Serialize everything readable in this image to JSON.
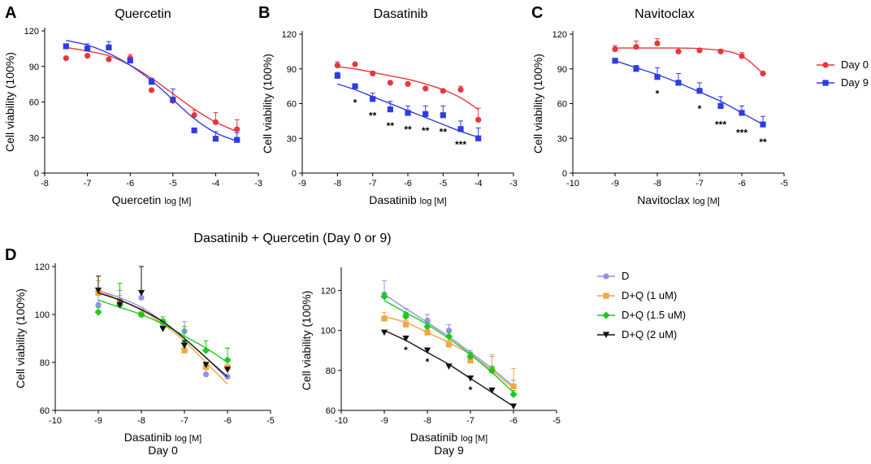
{
  "figure_title": "Dasatinib + Quercetin (Day 0 or 9)",
  "chart_data": [
    {
      "id": "A",
      "panel_label": "A",
      "type": "scatter",
      "title": "Quercetin",
      "xlabel": "Quercetin",
      "xlabel_suffix": "log [M]",
      "ylabel": "Cell viability (100%)",
      "xlim": [
        -8,
        -3
      ],
      "ylim": [
        0,
        120
      ],
      "xticks": [
        -8,
        -7,
        -6,
        -5,
        -4,
        -3
      ],
      "yticks": [
        0,
        30,
        60,
        90,
        120
      ],
      "series": [
        {
          "name": "Day 0",
          "color": "#e8373c",
          "marker": "circle",
          "x": [
            -7.5,
            -7,
            -6.5,
            -6,
            -5.5,
            -5,
            -4.5,
            -4,
            -3.5
          ],
          "y": [
            97,
            99,
            96,
            97,
            70,
            61,
            49,
            43,
            37
          ],
          "err": [
            0,
            0,
            0,
            3,
            0,
            0,
            4,
            8,
            8
          ],
          "fit": [
            [
              -7.5,
              106
            ],
            [
              -7,
              103
            ],
            [
              -6.5,
              99
            ],
            [
              -6,
              91
            ],
            [
              -5.5,
              80
            ],
            [
              -5,
              67
            ],
            [
              -4.5,
              54
            ],
            [
              -4,
              43
            ],
            [
              -3.5,
              35
            ]
          ]
        },
        {
          "name": "Day 9",
          "color": "#2f3de0",
          "marker": "square",
          "x": [
            -7.5,
            -7,
            -6.5,
            -6,
            -5.5,
            -5,
            -4.5,
            -4,
            -3.5
          ],
          "y": [
            107,
            105,
            106,
            95,
            77,
            62,
            36,
            29,
            28
          ],
          "err": [
            0,
            4,
            5,
            0,
            3,
            9,
            0,
            6,
            6
          ],
          "fit": [
            [
              -7.5,
              112
            ],
            [
              -7,
              108
            ],
            [
              -6.5,
              101
            ],
            [
              -6,
              91
            ],
            [
              -5.5,
              78
            ],
            [
              -5,
              62
            ],
            [
              -4.5,
              46
            ],
            [
              -4,
              34
            ],
            [
              -3.5,
              27
            ]
          ]
        }
      ],
      "annotations": []
    },
    {
      "id": "B",
      "panel_label": "B",
      "type": "scatter",
      "title": "Dasatinib",
      "xlabel": "Dasatinib",
      "xlabel_suffix": "log [M]",
      "ylabel": "Cell viability (100%)",
      "xlim": [
        -9,
        -3
      ],
      "ylim": [
        0,
        120
      ],
      "xticks": [
        -9,
        -8,
        -7,
        -6,
        -5,
        -4,
        -3
      ],
      "yticks": [
        0,
        30,
        60,
        90,
        120
      ],
      "series": [
        {
          "name": "Day 0",
          "color": "#e8373c",
          "marker": "circle",
          "x": [
            -8,
            -7.5,
            -7,
            -6.5,
            -6,
            -5.5,
            -5,
            -4.5,
            -4
          ],
          "y": [
            93,
            94,
            86,
            78,
            77,
            73,
            71,
            72,
            46
          ],
          "err": [
            3,
            0,
            2,
            0,
            0,
            0,
            0,
            3,
            10
          ],
          "fit": [
            [
              -8,
              92
            ],
            [
              -7.5,
              90
            ],
            [
              -7,
              87
            ],
            [
              -6.5,
              84
            ],
            [
              -6,
              81
            ],
            [
              -5.5,
              77
            ],
            [
              -5,
              72
            ],
            [
              -4.5,
              65
            ],
            [
              -4,
              55
            ]
          ]
        },
        {
          "name": "Day 9",
          "color": "#2f3de0",
          "marker": "square",
          "x": [
            -8,
            -7.5,
            -7,
            -6.5,
            -6,
            -5.5,
            -5,
            -4.5,
            -4
          ],
          "y": [
            84,
            75,
            64,
            55,
            52,
            51,
            50,
            38,
            30
          ],
          "err": [
            3,
            2,
            5,
            7,
            6,
            7,
            8,
            7,
            9
          ],
          "fit": [
            [
              -8,
              77
            ],
            [
              -7.5,
              72
            ],
            [
              -7,
              66
            ],
            [
              -6.5,
              60
            ],
            [
              -6,
              54
            ],
            [
              -5.5,
              48
            ],
            [
              -5,
              42
            ],
            [
              -4.5,
              36
            ],
            [
              -4,
              31
            ]
          ]
        }
      ],
      "annotations": [
        {
          "x": -7.5,
          "y": 62,
          "text": "*"
        },
        {
          "x": -7,
          "y": 51,
          "text": "**"
        },
        {
          "x": -6.5,
          "y": 42,
          "text": "**"
        },
        {
          "x": -6,
          "y": 39,
          "text": "**"
        },
        {
          "x": -5.5,
          "y": 38,
          "text": "**"
        },
        {
          "x": -5,
          "y": 37,
          "text": "**"
        },
        {
          "x": -4.5,
          "y": 26,
          "text": "***"
        }
      ]
    },
    {
      "id": "C",
      "panel_label": "C",
      "type": "scatter",
      "title": "Navitoclax",
      "xlabel": "Navitoclax",
      "xlabel_suffix": "log [M]",
      "ylabel": "Cell viability (100%)",
      "xlim": [
        -10,
        -5
      ],
      "ylim": [
        0,
        120
      ],
      "xticks": [
        -10,
        -9,
        -8,
        -7,
        -6,
        -5
      ],
      "yticks": [
        0,
        30,
        60,
        90,
        120
      ],
      "series": [
        {
          "name": "Day 0",
          "color": "#e8373c",
          "marker": "circle",
          "x": [
            -9,
            -8.5,
            -8,
            -7.5,
            -7,
            -6.5,
            -6,
            -5.5
          ],
          "y": [
            107,
            109,
            112,
            105,
            106,
            105,
            101,
            86
          ],
          "err": [
            3,
            5,
            4,
            0,
            0,
            2,
            3,
            0
          ],
          "fit": [
            [
              -9,
              108
            ],
            [
              -8.5,
              108
            ],
            [
              -8,
              108
            ],
            [
              -7.5,
              108
            ],
            [
              -7,
              107.5
            ],
            [
              -6.5,
              106
            ],
            [
              -6.2,
              104
            ],
            [
              -6,
              101
            ],
            [
              -5.8,
              96
            ],
            [
              -5.5,
              86
            ]
          ]
        },
        {
          "name": "Day 9",
          "color": "#2f3de0",
          "marker": "square",
          "x": [
            -9,
            -8.5,
            -8,
            -7.5,
            -7,
            -6.5,
            -6,
            -5.5
          ],
          "y": [
            97,
            90,
            83,
            78,
            71,
            58,
            52,
            42
          ],
          "err": [
            2,
            3,
            8,
            8,
            7,
            8,
            6,
            7
          ],
          "fit": [
            [
              -9,
              97
            ],
            [
              -8.5,
              91
            ],
            [
              -8,
              85
            ],
            [
              -7.5,
              78
            ],
            [
              -7,
              70
            ],
            [
              -6.5,
              62
            ],
            [
              -6,
              52
            ],
            [
              -5.5,
              42
            ]
          ]
        }
      ],
      "annotations": [
        {
          "x": -8,
          "y": 70,
          "text": "*"
        },
        {
          "x": -7,
          "y": 57,
          "text": "*"
        },
        {
          "x": -6.5,
          "y": 43,
          "text": "***"
        },
        {
          "x": -6,
          "y": 36,
          "text": "***"
        },
        {
          "x": -5.5,
          "y": 28,
          "text": "**"
        }
      ],
      "legend": {
        "placement": "right"
      }
    },
    {
      "id": "D0",
      "panel_label": "D",
      "type": "scatter",
      "title": "",
      "xlabel": "Dasatinib",
      "xlabel_suffix": "log [M]",
      "caption": "Day 0",
      "ylabel": "Cell viability (100%)",
      "xlim": [
        -10,
        -5
      ],
      "ylim": [
        60,
        120
      ],
      "xticks": [
        -10,
        -9,
        -8,
        -7,
        -6,
        -5
      ],
      "yticks": [
        60,
        80,
        100,
        120
      ],
      "series": [
        {
          "name": "D",
          "color": "#8f94e6",
          "marker": "circle",
          "x": [
            -9,
            -8.5,
            -8,
            -7.5,
            -7,
            -6.5,
            -6
          ],
          "y": [
            104,
            106,
            107,
            95,
            93,
            75,
            74
          ],
          "err": [
            5,
            4,
            3,
            2,
            4,
            2,
            3
          ],
          "fit": [
            [
              -9,
              110
            ],
            [
              -8.5,
              107
            ],
            [
              -8,
              103
            ],
            [
              -7.5,
              97
            ],
            [
              -7,
              90
            ],
            [
              -6.5,
              82
            ],
            [
              -6,
              73
            ]
          ]
        },
        {
          "name": "D+Q (1 uM)",
          "color": "#f4a640",
          "marker": "square",
          "x": [
            -9,
            -8.5,
            -8,
            -7.5,
            -7,
            -6.5,
            -6
          ],
          "y": [
            109,
            105,
            100,
            97,
            85,
            78,
            78
          ],
          "err": [
            5,
            3,
            3,
            2,
            3,
            2,
            8
          ],
          "fit": [
            [
              -9,
              110
            ],
            [
              -8.5,
              106
            ],
            [
              -8,
              102
            ],
            [
              -7.5,
              96
            ],
            [
              -7,
              89
            ],
            [
              -6.5,
              80
            ],
            [
              -6,
              71
            ]
          ]
        },
        {
          "name": "D+Q (1.5 uM)",
          "color": "#1ec81e",
          "marker": "diamond",
          "x": [
            -9,
            -8.5,
            -8,
            -7.5,
            -7,
            -6.5,
            -6
          ],
          "y": [
            101,
            104,
            100,
            97,
            88,
            85,
            81
          ],
          "err": [
            2,
            9,
            2,
            2,
            7,
            4,
            5
          ],
          "fit": [
            [
              -9,
              106
            ],
            [
              -8.5,
              103
            ],
            [
              -8,
              100
            ],
            [
              -7.5,
              96
            ],
            [
              -7,
              91
            ],
            [
              -6.5,
              86
            ],
            [
              -6,
              80
            ]
          ]
        },
        {
          "name": "D+Q (2 uM)",
          "color": "#111111",
          "marker": "triangle-down",
          "x": [
            -9,
            -8.5,
            -8,
            -7.5,
            -7,
            -6.5,
            -6
          ],
          "y": [
            110,
            104,
            109,
            94,
            87,
            79,
            77
          ],
          "err": [
            6,
            2,
            11,
            0,
            2,
            0,
            0
          ],
          "fit": [
            [
              -9,
              109
            ],
            [
              -8.5,
              106
            ],
            [
              -8,
              102
            ],
            [
              -7.5,
              97
            ],
            [
              -7,
              90
            ],
            [
              -6.5,
              82
            ],
            [
              -6,
              74
            ]
          ]
        }
      ],
      "annotations": []
    },
    {
      "id": "D9",
      "panel_label": "",
      "type": "scatter",
      "title": "",
      "xlabel": "Dasatinib",
      "xlabel_suffix": "log [M]",
      "caption": "Day 9",
      "ylabel": "Cell viability (100%)",
      "xlim": [
        -10,
        -5
      ],
      "ylim": [
        60,
        130
      ],
      "xticks": [
        -10,
        -9,
        -8,
        -7,
        -6,
        -5
      ],
      "yticks": [
        60,
        80,
        100,
        120
      ],
      "series": [
        {
          "name": "D",
          "color": "#8f94e6",
          "marker": "circle",
          "x": [
            -9,
            -8.5,
            -8,
            -7.5,
            -7,
            -6.5,
            -6
          ],
          "y": [
            118,
            108,
            105,
            100,
            88,
            81,
            72
          ],
          "err": [
            7,
            3,
            3,
            3,
            2,
            6,
            3
          ],
          "fit": [
            [
              -9,
              118
            ],
            [
              -8.5,
              111
            ],
            [
              -8,
              104
            ],
            [
              -7.5,
              97
            ],
            [
              -7,
              89
            ],
            [
              -6.5,
              81
            ],
            [
              -6,
              72
            ]
          ]
        },
        {
          "name": "D+Q (1 uM)",
          "color": "#f4a640",
          "marker": "square",
          "x": [
            -9,
            -8.5,
            -8,
            -7.5,
            -7,
            -6.5,
            -6
          ],
          "y": [
            106,
            103,
            99,
            93,
            85,
            80,
            72
          ],
          "err": [
            3,
            2,
            2,
            2,
            3,
            8,
            9
          ],
          "fit": [
            [
              -9,
              107
            ],
            [
              -8.5,
              104
            ],
            [
              -8,
              99
            ],
            [
              -7.5,
              94
            ],
            [
              -7,
              88
            ],
            [
              -6.5,
              80
            ],
            [
              -6,
              71
            ]
          ]
        },
        {
          "name": "D+Q (1.5 uM)",
          "color": "#1ec81e",
          "marker": "diamond",
          "x": [
            -9,
            -8.5,
            -8,
            -7.5,
            -7,
            -6.5,
            -6
          ],
          "y": [
            117,
            107,
            102,
            97,
            87,
            80,
            68
          ],
          "err": [
            2,
            2,
            2,
            2,
            2,
            2,
            2
          ],
          "fit": [
            [
              -9,
              115
            ],
            [
              -8.5,
              109
            ],
            [
              -8,
              103
            ],
            [
              -7.5,
              96
            ],
            [
              -7,
              88
            ],
            [
              -6.5,
              79
            ],
            [
              -6,
              69
            ]
          ]
        },
        {
          "name": "D+Q (2 uM)",
          "color": "#111111",
          "marker": "triangle-down",
          "x": [
            -9,
            -8.5,
            -8,
            -7.5,
            -7,
            -6.5,
            -6
          ],
          "y": [
            99,
            96,
            90,
            82,
            76,
            70,
            62
          ],
          "err": [
            1,
            1,
            0,
            0,
            0,
            0,
            1
          ],
          "fit": [
            [
              -9,
              100
            ],
            [
              -8.5,
              95
            ],
            [
              -8,
              89
            ],
            [
              -7.5,
              83
            ],
            [
              -7,
              76
            ],
            [
              -6.5,
              69
            ],
            [
              -6,
              62
            ]
          ]
        }
      ],
      "annotations": [
        {
          "x": -8.5,
          "y": 91,
          "text": "*"
        },
        {
          "x": -8,
          "y": 85,
          "text": "*"
        },
        {
          "x": -7,
          "y": 71,
          "text": "*"
        }
      ],
      "legend": {
        "placement": "right"
      }
    }
  ]
}
